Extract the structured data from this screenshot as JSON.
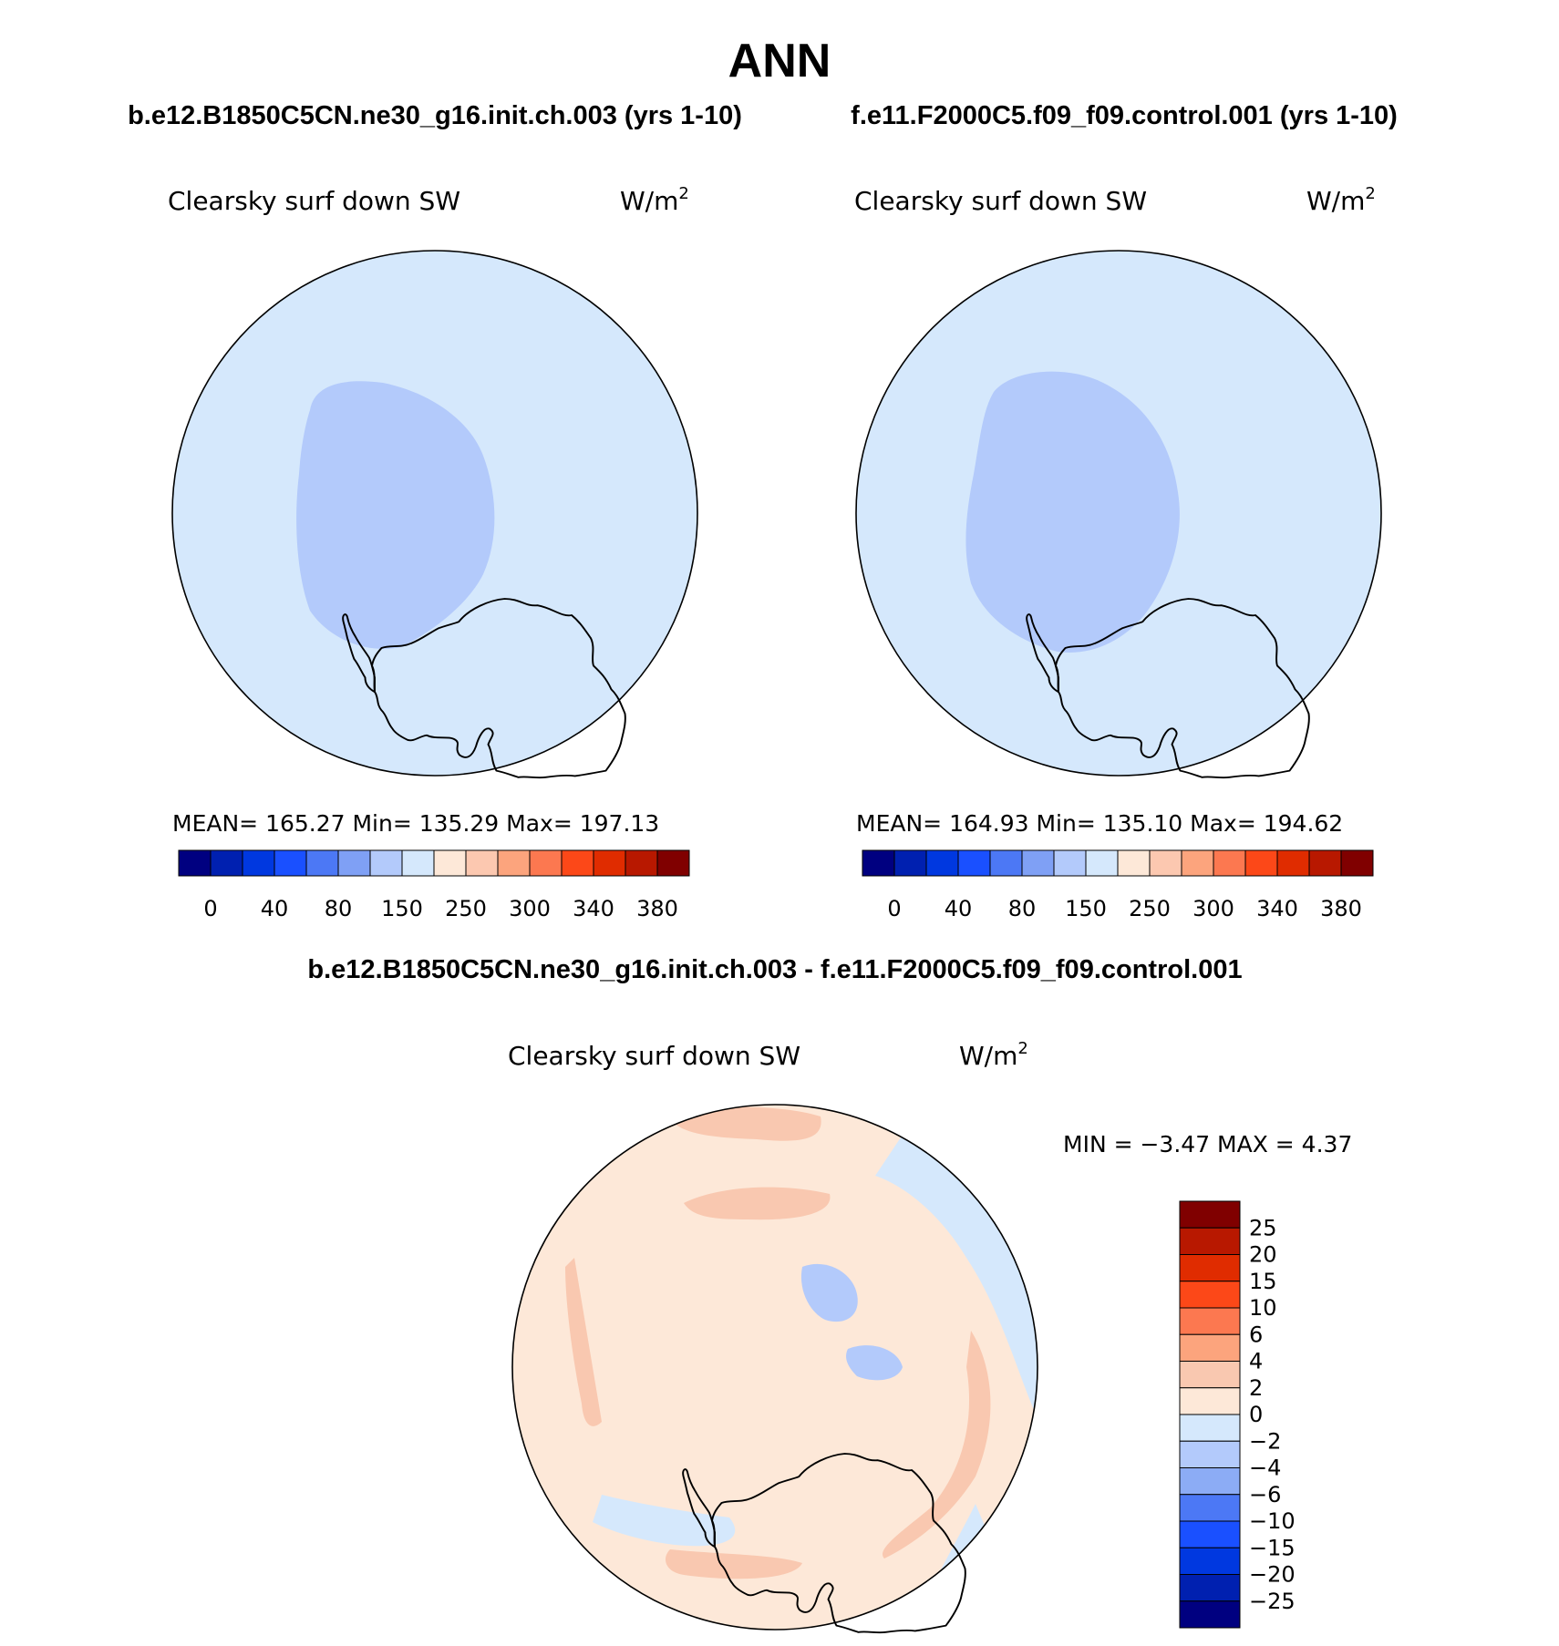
{
  "title": "ANN",
  "colors": {
    "bg_light_blue": "#d5e8fc",
    "mid_blue": "#b3cafb",
    "blue_minus4": "#8cacf5",
    "light_peach": "#fde8d8",
    "peach": "#f9c8b0"
  },
  "panels": [
    {
      "id": "case",
      "header": "b.e12.B1850C5CN.ne30_g16.init.ch.003 (yrs 1-10)",
      "variable": "Clearsky surf down SW",
      "units": "W/m",
      "units_sup": "2",
      "stats": "MEAN= 165.27   Min= 135.29   Max= 197.13",
      "mean": 165.27,
      "min": 135.29,
      "max": 197.13
    },
    {
      "id": "control",
      "header": "f.e11.F2000C5.f09_f09.control.001 (yrs 1-10)",
      "variable": "Clearsky surf down SW",
      "units": "W/m",
      "units_sup": "2",
      "stats": "MEAN= 164.93   Min= 135.10   Max= 194.62",
      "mean": 164.93,
      "min": 135.1,
      "max": 194.62
    }
  ],
  "top_colorbar": {
    "colors": [
      "#000080",
      "#0020b0",
      "#0038e0",
      "#1a50ff",
      "#4c78f5",
      "#7fa0f5",
      "#b3cafb",
      "#d5e8fc",
      "#fde8d8",
      "#fcc8b0",
      "#fca47d",
      "#fc7850",
      "#fc4818",
      "#e02c00",
      "#b81800",
      "#800000"
    ],
    "labels": [
      "0",
      "40",
      "80",
      "150",
      "250",
      "300",
      "340",
      "380"
    ]
  },
  "diff": {
    "header": "b.e12.B1850C5CN.ne30_g16.init.ch.003 - f.e11.F2000C5.f09_f09.control.001",
    "variable": "Clearsky surf down SW",
    "units": "W/m",
    "units_sup": "2",
    "minmax": "MIN =   −3.47 MAX =    4.37",
    "min": -3.47,
    "max": 4.37,
    "colorbar": {
      "colors": [
        "#800000",
        "#b81800",
        "#e02c00",
        "#fc4818",
        "#fc7850",
        "#fca47d",
        "#f9c8b0",
        "#fde8d8",
        "#d5e8fc",
        "#b3cafb",
        "#8cacf5",
        "#4c78f5",
        "#1a50ff",
        "#0038e0",
        "#0020b0",
        "#000080"
      ],
      "labels": [
        "25",
        "20",
        "15",
        "10",
        "6",
        "4",
        "2",
        "0",
        "−2",
        "−4",
        "−6",
        "−10",
        "−15",
        "−20",
        "−25"
      ]
    }
  }
}
